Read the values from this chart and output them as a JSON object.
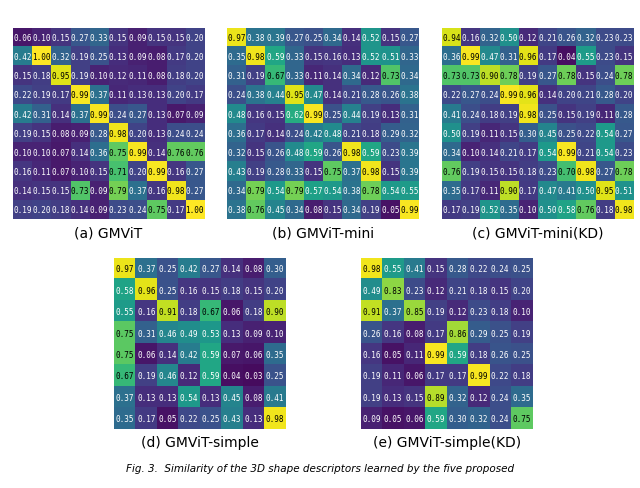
{
  "title": "Fig. 3. Similarity of the 3D shape descriptors learned by the five proposed",
  "colormap": "viridis",
  "matrices": {
    "a": {
      "label": "(a) GMViT",
      "data": [
        [
          0.06,
          0.1,
          0.15,
          0.27,
          0.33,
          0.15,
          0.09,
          0.15,
          0.15,
          0.2
        ],
        [
          0.42,
          1.0,
          0.32,
          0.19,
          0.25,
          0.13,
          0.09,
          0.08,
          0.17,
          0.2
        ],
        [
          0.15,
          0.18,
          0.95,
          0.19,
          0.1,
          0.12,
          0.11,
          0.08,
          0.18,
          0.2
        ],
        [
          0.22,
          0.19,
          0.17,
          0.99,
          0.37,
          0.11,
          0.13,
          0.13,
          0.2,
          0.17
        ],
        [
          0.42,
          0.31,
          0.14,
          0.37,
          0.99,
          0.24,
          0.27,
          0.13,
          0.07,
          0.09
        ],
        [
          0.19,
          0.15,
          0.08,
          0.09,
          0.28,
          0.98,
          0.2,
          0.13,
          0.24,
          0.24
        ],
        [
          0.1,
          0.1,
          0.07,
          0.14,
          0.36,
          0.75,
          0.99,
          0.14,
          0.76,
          0.76
        ],
        [
          0.16,
          0.11,
          0.07,
          0.1,
          0.15,
          0.71,
          0.2,
          0.99,
          0.16,
          0.27
        ],
        [
          0.14,
          0.15,
          0.15,
          0.73,
          0.09,
          0.79,
          0.37,
          0.16,
          0.98,
          0.27
        ],
        [
          0.19,
          0.2,
          0.18,
          0.14,
          0.09,
          0.23,
          0.24,
          0.75,
          0.17,
          1.0
        ]
      ]
    },
    "b": {
      "label": "(b) GMViT-mini",
      "data": [
        [
          0.97,
          0.38,
          0.39,
          0.27,
          0.25,
          0.34,
          0.14,
          0.52,
          0.15,
          0.27
        ],
        [
          0.35,
          0.98,
          0.59,
          0.33,
          0.15,
          0.16,
          0.13,
          0.52,
          0.51,
          0.33
        ],
        [
          0.31,
          0.19,
          0.67,
          0.33,
          0.11,
          0.14,
          0.34,
          0.12,
          0.73,
          0.34
        ],
        [
          0.24,
          0.38,
          0.44,
          0.95,
          0.47,
          0.14,
          0.21,
          0.28,
          0.26,
          0.38
        ],
        [
          0.48,
          0.16,
          0.15,
          0.62,
          0.99,
          0.25,
          0.44,
          0.19,
          0.13,
          0.31
        ],
        [
          0.36,
          0.17,
          0.14,
          0.24,
          0.42,
          0.48,
          0.21,
          0.18,
          0.29,
          0.32
        ],
        [
          0.32,
          0.15,
          0.26,
          0.48,
          0.59,
          0.26,
          0.98,
          0.59,
          0.23,
          0.39
        ],
        [
          0.43,
          0.19,
          0.28,
          0.33,
          0.15,
          0.75,
          0.37,
          0.98,
          0.15,
          0.39
        ],
        [
          0.34,
          0.79,
          0.54,
          0.79,
          0.57,
          0.54,
          0.38,
          0.78,
          0.54,
          0.55
        ],
        [
          0.38,
          0.76,
          0.45,
          0.34,
          0.08,
          0.15,
          0.34,
          0.19,
          0.05,
          0.99
        ]
      ]
    },
    "c": {
      "label": "(c) GMViT-mini(KD)",
      "data": [
        [
          0.94,
          0.16,
          0.32,
          0.5,
          0.12,
          0.21,
          0.26,
          0.32,
          0.23,
          0.23
        ],
        [
          0.36,
          0.99,
          0.47,
          0.31,
          0.96,
          0.17,
          0.04,
          0.55,
          0.23,
          0.15
        ],
        [
          0.73,
          0.73,
          0.9,
          0.78,
          0.19,
          0.27,
          0.78,
          0.15,
          0.24,
          0.78
        ],
        [
          0.22,
          0.27,
          0.24,
          0.99,
          0.96,
          0.14,
          0.2,
          0.21,
          0.28,
          0.2
        ],
        [
          0.41,
          0.24,
          0.18,
          0.19,
          0.98,
          0.25,
          0.15,
          0.19,
          0.11,
          0.28
        ],
        [
          0.5,
          0.19,
          0.11,
          0.15,
          0.3,
          0.45,
          0.25,
          0.22,
          0.54,
          0.27
        ],
        [
          0.34,
          0.1,
          0.14,
          0.21,
          0.17,
          0.54,
          0.99,
          0.21,
          0.54,
          0.23
        ],
        [
          0.76,
          0.19,
          0.15,
          0.15,
          0.18,
          0.23,
          0.7,
          0.98,
          0.27,
          0.78
        ],
        [
          0.35,
          0.17,
          0.11,
          0.9,
          0.17,
          0.47,
          0.41,
          0.5,
          0.95,
          0.51
        ],
        [
          0.17,
          0.19,
          0.52,
          0.35,
          0.1,
          0.5,
          0.58,
          0.76,
          0.18,
          0.98
        ]
      ]
    },
    "d": {
      "label": "(d) GMViT-simple",
      "data": [
        [
          0.97,
          0.37,
          0.25,
          0.42,
          0.27,
          0.14,
          0.08,
          0.3
        ],
        [
          0.58,
          0.96,
          0.25,
          0.16,
          0.15,
          0.18,
          0.15,
          0.2
        ],
        [
          0.55,
          0.16,
          0.91,
          0.18,
          0.67,
          0.06,
          0.18,
          0.9
        ],
        [
          0.75,
          0.31,
          0.46,
          0.49,
          0.53,
          0.13,
          0.09,
          0.1
        ],
        [
          0.75,
          0.06,
          0.14,
          0.42,
          0.59,
          0.07,
          0.06,
          0.35
        ],
        [
          0.67,
          0.19,
          0.46,
          0.12,
          0.59,
          0.04,
          0.03,
          0.25
        ],
        [
          0.37,
          0.13,
          0.13,
          0.54,
          0.13,
          0.45,
          0.08,
          0.41
        ],
        [
          0.35,
          0.17,
          0.05,
          0.22,
          0.25,
          0.43,
          0.13,
          0.98
        ]
      ]
    },
    "e": {
      "label": "(e) GMViT-simple(KD)",
      "data": [
        [
          0.98,
          0.55,
          0.41,
          0.15,
          0.28,
          0.22,
          0.24,
          0.25
        ],
        [
          0.49,
          0.83,
          0.23,
          0.12,
          0.21,
          0.18,
          0.15,
          0.2
        ],
        [
          0.91,
          0.37,
          0.85,
          0.19,
          0.12,
          0.23,
          0.18,
          0.1
        ],
        [
          0.26,
          0.16,
          0.08,
          0.17,
          0.86,
          0.29,
          0.25,
          0.19
        ],
        [
          0.16,
          0.05,
          0.11,
          0.99,
          0.59,
          0.18,
          0.26,
          0.25
        ],
        [
          0.19,
          0.11,
          0.06,
          0.17,
          0.17,
          0.99,
          0.22,
          0.18
        ],
        [
          0.19,
          0.13,
          0.15,
          0.89,
          0.32,
          0.12,
          0.24,
          0.35
        ],
        [
          0.09,
          0.05,
          0.06,
          0.59,
          0.3,
          0.32,
          0.24,
          0.75
        ]
      ]
    }
  },
  "text_color_threshold": 0.6,
  "vmin": 0.0,
  "vmax": 1.0,
  "fontsize_cell": 5.5,
  "fontsize_label": 10
}
